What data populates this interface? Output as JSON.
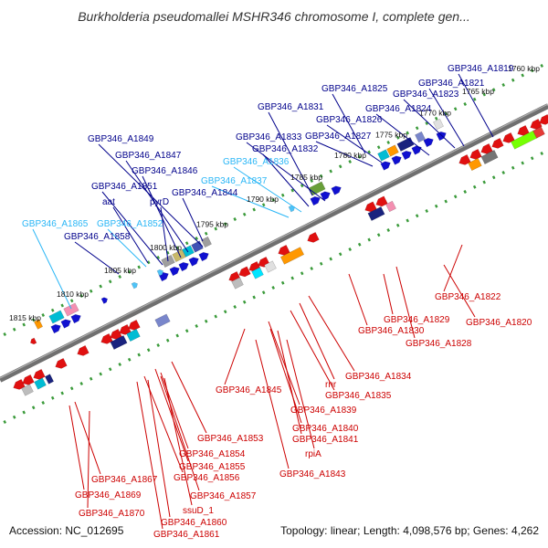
{
  "title": "Burkholderia pseudomallei MSHR346 chromosome I, complete gen...",
  "footer": {
    "accession": "Accession: NC_012695",
    "summary": "Topology: linear; Length: 4,098,576 bp; Genes: 4,262"
  },
  "colors": {
    "minus_strand_gene": "#e01010",
    "plus_strand_gene": "#1010d0",
    "light_gene": "#4fc3f7",
    "label_top": "#00008b",
    "label_top_light": "#29b6f6",
    "label_bottom": "#cc0000",
    "axis": "#707070",
    "track_ticks": "#3a9a3a"
  },
  "scale_labels": [
    "1760 kbp",
    "1765 kbp",
    "1770 kbp",
    "1775 kbp",
    "1780 kbp",
    "1785 kbp",
    "1790 kbp",
    "1795 kbp",
    "1800 kbp",
    "1805 kbp",
    "1810 kbp",
    "1815 kbp"
  ],
  "top_labels": [
    {
      "text": "GBP346_A1819",
      "tone": "dark"
    },
    {
      "text": "GBP346_A1821",
      "tone": "dark"
    },
    {
      "text": "GBP346_A1823",
      "tone": "dark"
    },
    {
      "text": "GBP346_A1825",
      "tone": "dark"
    },
    {
      "text": "GBP346_A1824",
      "tone": "dark"
    },
    {
      "text": "GBP346_A1831",
      "tone": "dark"
    },
    {
      "text": "GBP346_A1826",
      "tone": "dark"
    },
    {
      "text": "GBP346_A1827",
      "tone": "dark"
    },
    {
      "text": "GBP346_A1833",
      "tone": "dark"
    },
    {
      "text": "GBP346_A1832",
      "tone": "dark"
    },
    {
      "text": "GBP346_A1849",
      "tone": "dark"
    },
    {
      "text": "GBP346_A1847",
      "tone": "dark"
    },
    {
      "text": "GBP346_A1836",
      "tone": "light"
    },
    {
      "text": "GBP346_A1846",
      "tone": "dark"
    },
    {
      "text": "GBP346_A1837",
      "tone": "light"
    },
    {
      "text": "GBP346_A1851",
      "tone": "dark"
    },
    {
      "text": "GBP346_A1844",
      "tone": "dark"
    },
    {
      "text": "aat",
      "tone": "dark"
    },
    {
      "text": "pyrD",
      "tone": "dark"
    },
    {
      "text": "GBP346_A1865",
      "tone": "light"
    },
    {
      "text": "GBP346_A1852",
      "tone": "light"
    },
    {
      "text": "GBP346_A1858",
      "tone": "dark"
    }
  ],
  "bottom_labels": [
    {
      "text": "GBP346_A1822"
    },
    {
      "text": "GBP346_A1829"
    },
    {
      "text": "GBP346_A1820"
    },
    {
      "text": "GBP346_A1830"
    },
    {
      "text": "GBP346_A1828"
    },
    {
      "text": "GBP346_A1834"
    },
    {
      "text": "rnr"
    },
    {
      "text": "GBP346_A1845"
    },
    {
      "text": "GBP346_A1835"
    },
    {
      "text": "GBP346_A1839"
    },
    {
      "text": "GBP346_A1840"
    },
    {
      "text": "GBP346_A1841"
    },
    {
      "text": "GBP346_A1853"
    },
    {
      "text": "rpiA"
    },
    {
      "text": "GBP346_A1854"
    },
    {
      "text": "GBP346_A1855"
    },
    {
      "text": "GBP346_A1843"
    },
    {
      "text": "GBP346_A1856"
    },
    {
      "text": "GBP346_A1867"
    },
    {
      "text": "GBP346_A1869"
    },
    {
      "text": "GBP346_A1857"
    },
    {
      "text": "ssuD_1"
    },
    {
      "text": "GBP346_A1870"
    },
    {
      "text": "GBP346_A1860"
    },
    {
      "text": "GBP346_A1861"
    }
  ]
}
